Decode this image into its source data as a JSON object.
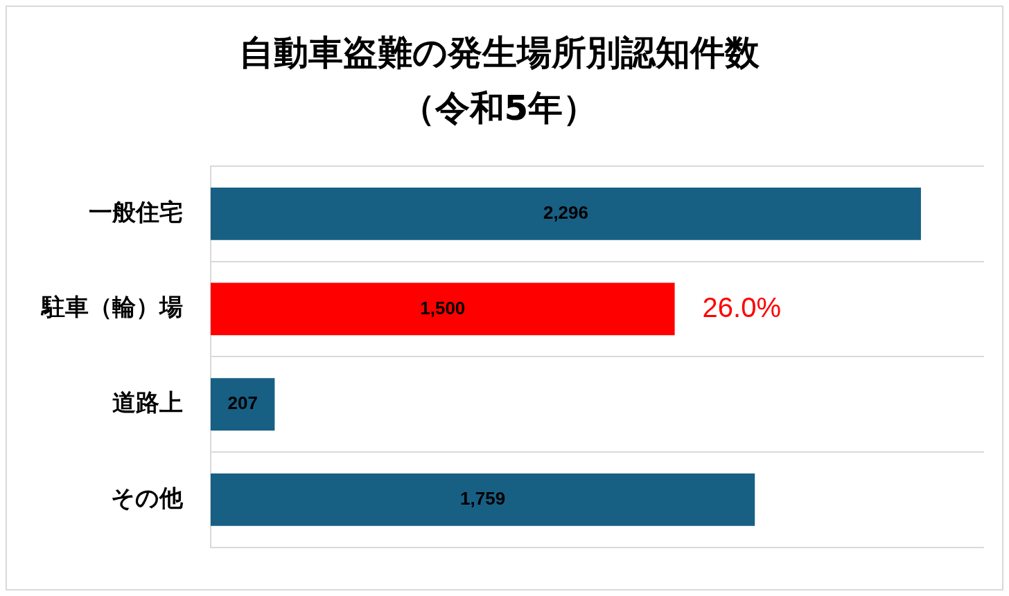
{
  "chart_data": {
    "type": "bar",
    "orientation": "horizontal",
    "title": "自動車盗難の発生場所別認知件数",
    "subtitle": "（令和5年）",
    "categories": [
      "一般住宅",
      "駐車（輪）場",
      "道路上",
      "その他"
    ],
    "values": [
      2296,
      1500,
      207,
      1759
    ],
    "colors": [
      "#185f84",
      "#ff0000",
      "#185f84",
      "#185f84"
    ],
    "value_labels": [
      "2,296",
      "1,500",
      "207",
      "1,759"
    ],
    "xlim": [
      0,
      2500
    ],
    "tick_labels": "y",
    "grid": "y",
    "legend": false,
    "annotations": [
      {
        "text": "26.0%",
        "x": 1500,
        "y": "駐車（輪）場"
      }
    ]
  }
}
